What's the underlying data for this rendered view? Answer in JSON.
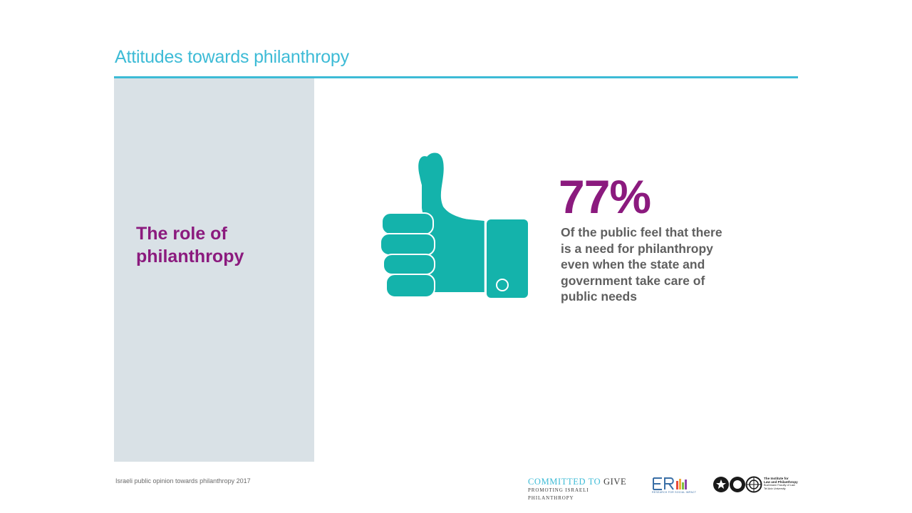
{
  "slide": {
    "title": "Attitudes towards philanthropy",
    "section_heading": "The role of philanthropy"
  },
  "stat": {
    "value": "77%",
    "description": "Of the public feel that there is a need for philanthropy even when the state and government take care of public needs",
    "icon": "thumbs-up-icon"
  },
  "footer": {
    "source": "Israeli public opinion towards philanthropy 2017",
    "logos": {
      "committed_to": "COMMITTED TO",
      "give": "GIVE",
      "committed_tagline": "PROMOTING ISRAELI PHILANTHROPY",
      "eri_name": "ERI",
      "eri_tagline": "RESEARCH FOR SOCIAL IMPACT",
      "institute_line1": "The Institute for",
      "institute_line2": "Law and Philanthropy",
      "institute_line3": "Buchmann Faculty of Law",
      "institute_line4": "Tel Aviv University"
    }
  },
  "colors": {
    "accent_cyan": "#3dbbd6",
    "accent_purple": "#8b1a7e",
    "thumb_teal": "#14b3ab",
    "panel_gray": "#d9e1e6",
    "body_text": "#5f5f5f"
  }
}
